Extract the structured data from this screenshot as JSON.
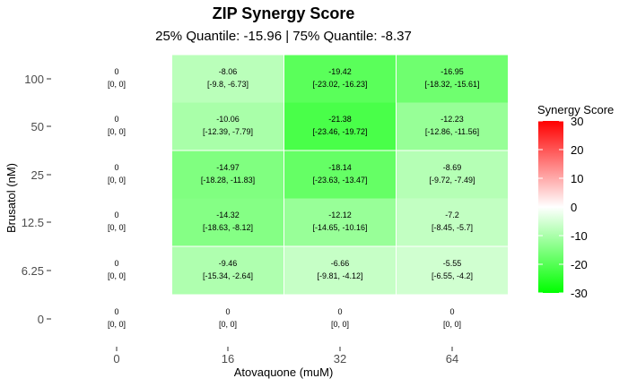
{
  "chart_data": {
    "type": "heatmap",
    "title": "ZIP Synergy Score",
    "subtitle": "25% Quantile: -15.96 | 75% Quantile: -8.37",
    "xlabel": "Atovaquone (muM)",
    "ylabel": "Brusatol (nM)",
    "x_categories": [
      "0",
      "16",
      "32",
      "64"
    ],
    "y_categories": [
      "0",
      "6.25",
      "12.5",
      "25",
      "50",
      "100"
    ],
    "legend": {
      "title": "Synergy Score",
      "min": -30,
      "max": 30,
      "ticks": [
        "30",
        "20",
        "10",
        "0",
        "-10",
        "-20",
        "-30"
      ],
      "colors": {
        "high": "#ff0000",
        "mid": "#ffffff",
        "low": "#00ff00"
      },
      "placement": "right"
    },
    "cells": [
      {
        "x": "0",
        "y": "100",
        "value": 0,
        "label": "0",
        "ci": "[0, 0]"
      },
      {
        "x": "16",
        "y": "100",
        "value": -8.06,
        "label": "-8.06",
        "ci": "[-9.8, -6.73]"
      },
      {
        "x": "32",
        "y": "100",
        "value": -19.42,
        "label": "-19.42",
        "ci": "[-23.02, -16.23]"
      },
      {
        "x": "64",
        "y": "100",
        "value": -16.95,
        "label": "-16.95",
        "ci": "[-18.32, -15.61]"
      },
      {
        "x": "0",
        "y": "50",
        "value": 0,
        "label": "0",
        "ci": "[0, 0]"
      },
      {
        "x": "16",
        "y": "50",
        "value": -10.06,
        "label": "-10.06",
        "ci": "[-12.39, -7.79]"
      },
      {
        "x": "32",
        "y": "50",
        "value": -21.38,
        "label": "-21.38",
        "ci": "[-23.46, -19.72]"
      },
      {
        "x": "64",
        "y": "50",
        "value": -12.23,
        "label": "-12.23",
        "ci": "[-12.86, -11.56]"
      },
      {
        "x": "0",
        "y": "25",
        "value": 0,
        "label": "0",
        "ci": "[0, 0]"
      },
      {
        "x": "16",
        "y": "25",
        "value": -14.97,
        "label": "-14.97",
        "ci": "[-18.28, -11.83]"
      },
      {
        "x": "32",
        "y": "25",
        "value": -18.14,
        "label": "-18.14",
        "ci": "[-23.63, -13.47]"
      },
      {
        "x": "64",
        "y": "25",
        "value": -8.69,
        "label": "-8.69",
        "ci": "[-9.72, -7.49]"
      },
      {
        "x": "0",
        "y": "12.5",
        "value": 0,
        "label": "0",
        "ci": "[0, 0]"
      },
      {
        "x": "16",
        "y": "12.5",
        "value": -14.32,
        "label": "-14.32",
        "ci": "[-18.63, -8.12]"
      },
      {
        "x": "32",
        "y": "12.5",
        "value": -12.12,
        "label": "-12.12",
        "ci": "[-14.65, -10.16]"
      },
      {
        "x": "64",
        "y": "12.5",
        "value": -7.2,
        "label": "-7.2",
        "ci": "[-8.45, -5.7]"
      },
      {
        "x": "0",
        "y": "6.25",
        "value": 0,
        "label": "0",
        "ci": "[0, 0]"
      },
      {
        "x": "16",
        "y": "6.25",
        "value": -9.46,
        "label": "-9.46",
        "ci": "[-15.34, -2.64]"
      },
      {
        "x": "32",
        "y": "6.25",
        "value": -6.66,
        "label": "-6.66",
        "ci": "[-9.81, -4.12]"
      },
      {
        "x": "64",
        "y": "6.25",
        "value": -5.55,
        "label": "-5.55",
        "ci": "[-6.55, -4.2]"
      },
      {
        "x": "0",
        "y": "0",
        "value": 0,
        "label": "0",
        "ci": "[0, 0]"
      },
      {
        "x": "16",
        "y": "0",
        "value": 0,
        "label": "0",
        "ci": "[0, 0]"
      },
      {
        "x": "32",
        "y": "0",
        "value": 0,
        "label": "0",
        "ci": "[0, 0]"
      },
      {
        "x": "64",
        "y": "0",
        "value": 0,
        "label": "0",
        "ci": "[0, 0]"
      }
    ]
  }
}
